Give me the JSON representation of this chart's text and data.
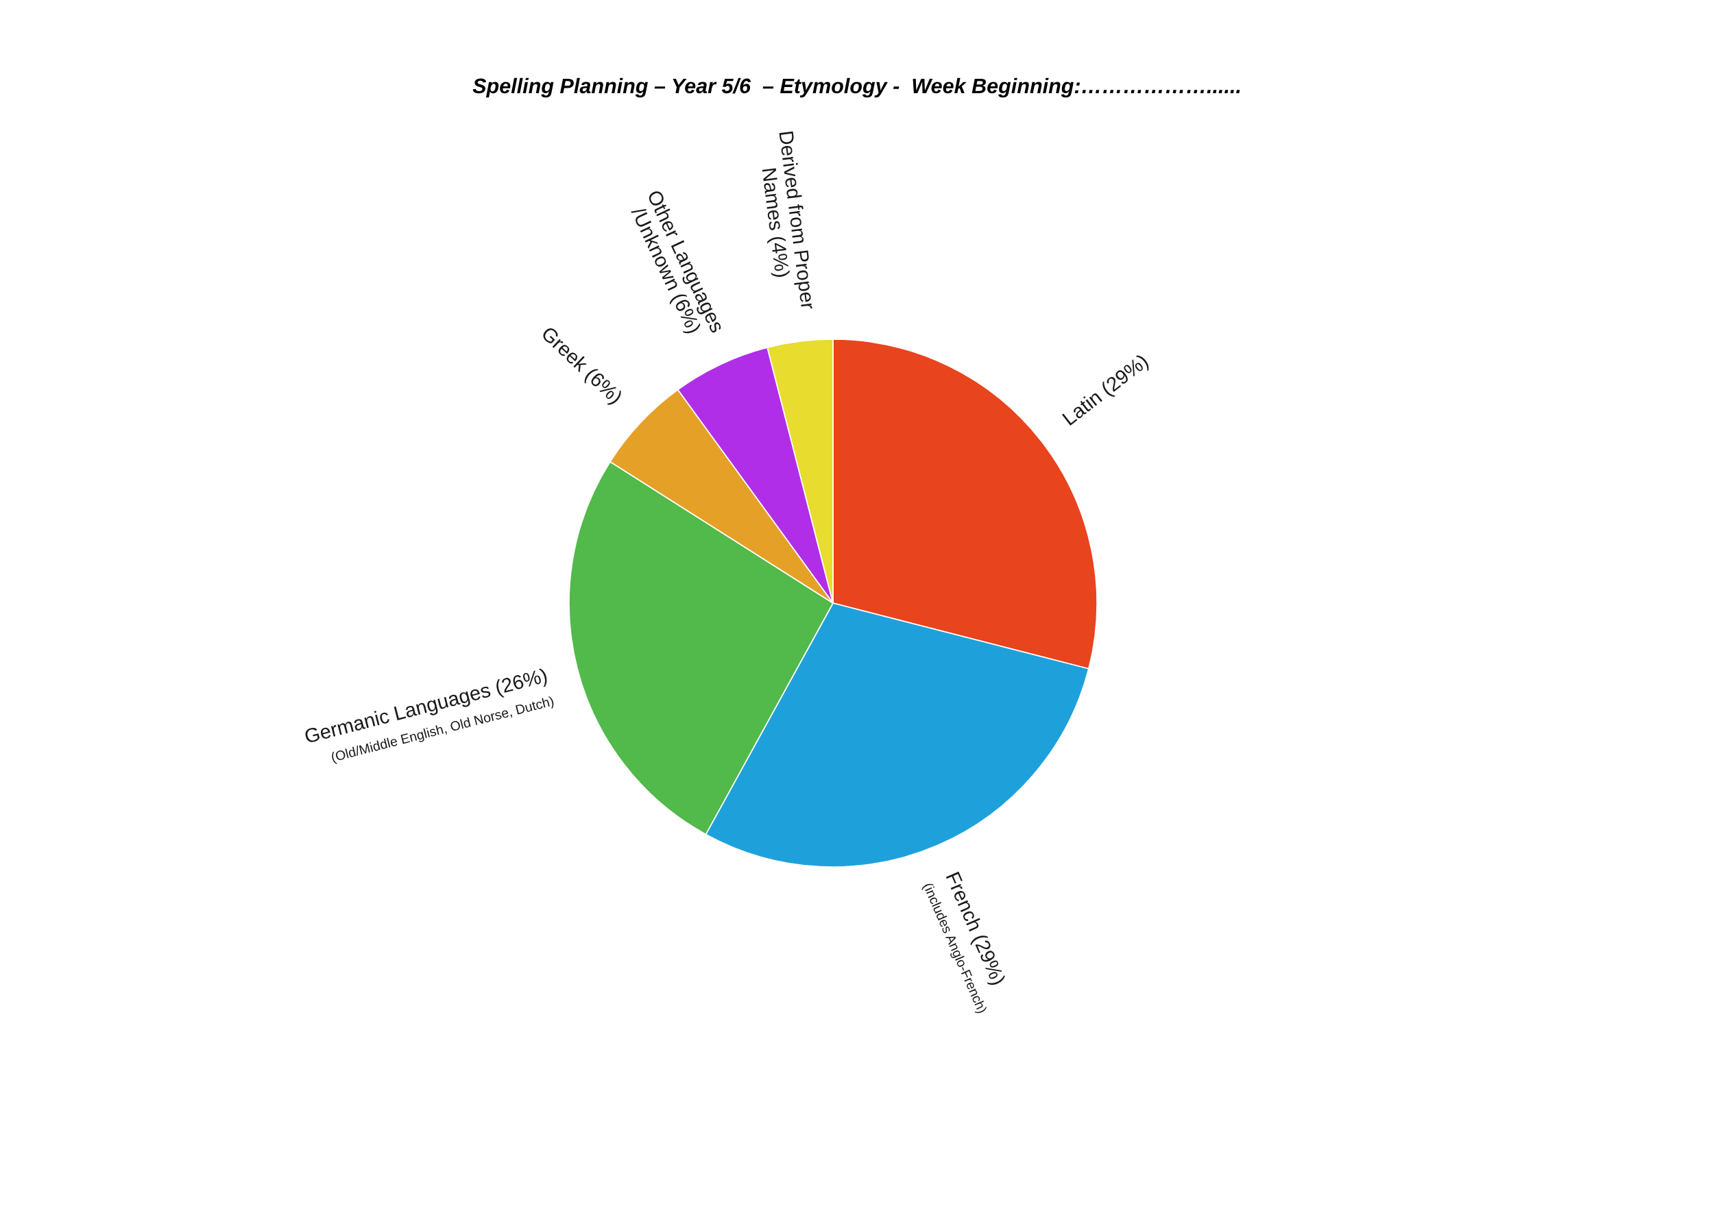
{
  "chart_data": {
    "type": "pie",
    "title": "Spelling Planning – Year 5/6  – Etymology -  Week Beginning:………………......",
    "categories": [
      "Latin (29%)",
      "French (29%)",
      "Germanic Languages (26%)",
      "Greek (6%)",
      "Other Languages\n/Unknown (6%)",
      "Derived from Proper\nNames (4%)"
    ],
    "values": [
      29,
      29,
      26,
      6,
      6,
      4
    ],
    "colors": [
      "#e8441d",
      "#1ea1db",
      "#52b94b",
      "#e5a127",
      "#b12ee8",
      "#e8dc2f"
    ],
    "annotations": [
      {
        "text": "(includes Anglo-French)",
        "x": "French (29%)"
      },
      {
        "text": "(Old/Middle English, Old Norse, Dutch)",
        "x": "Germanic Languages (26%)"
      }
    ]
  }
}
